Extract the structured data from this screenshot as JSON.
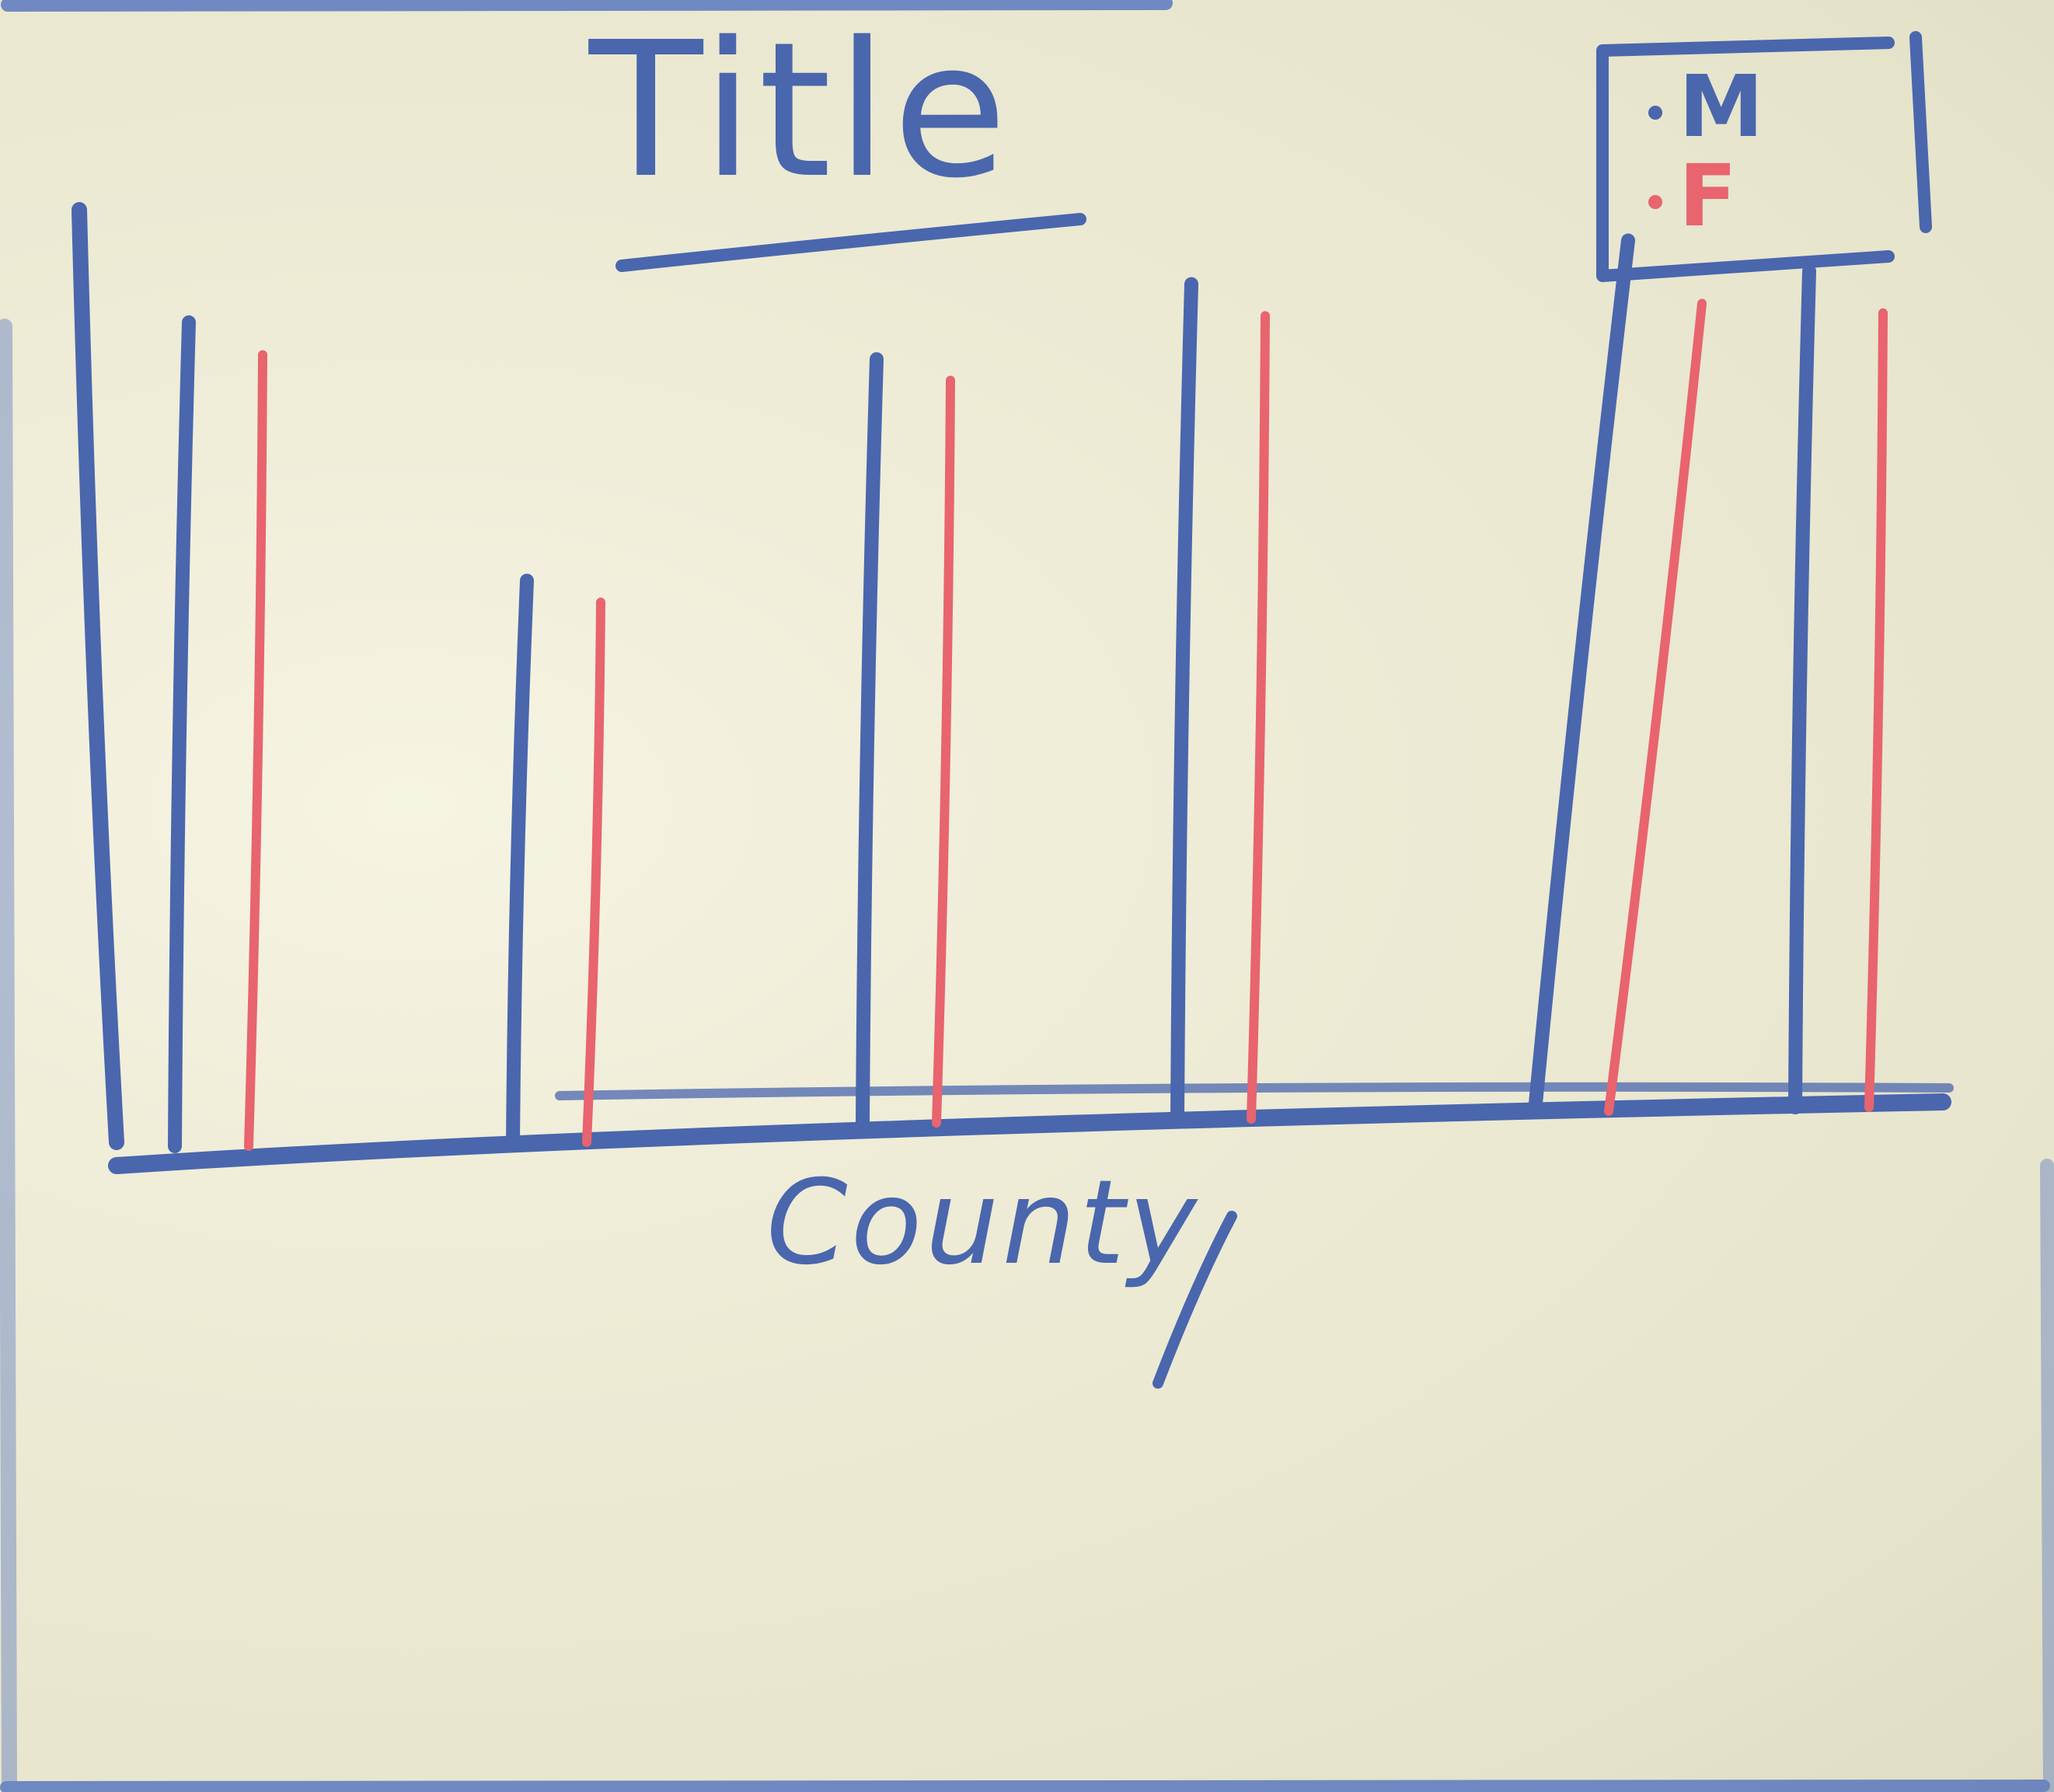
{
  "chart_data": {
    "type": "bar",
    "title": "Title",
    "xlabel": "County",
    "ylabel": "",
    "categories": [
      "",
      "",
      "",
      "",
      "",
      ""
    ],
    "series": [
      {
        "name": "M",
        "values": [
          76,
          52,
          72,
          79,
          83,
          80
        ]
      },
      {
        "name": "F",
        "values": [
          73,
          50,
          70,
          76,
          77,
          76
        ]
      }
    ],
    "ylim": [
      0,
      100
    ],
    "legend": {
      "position": "top-right",
      "entries": [
        {
          "label": "M",
          "color": "#4a66ad"
        },
        {
          "label": "F",
          "color": "#e8646e"
        }
      ]
    },
    "grid": false
  },
  "colors": {
    "marker_blue": "#4a66ad",
    "marker_red": "#e8646e"
  }
}
